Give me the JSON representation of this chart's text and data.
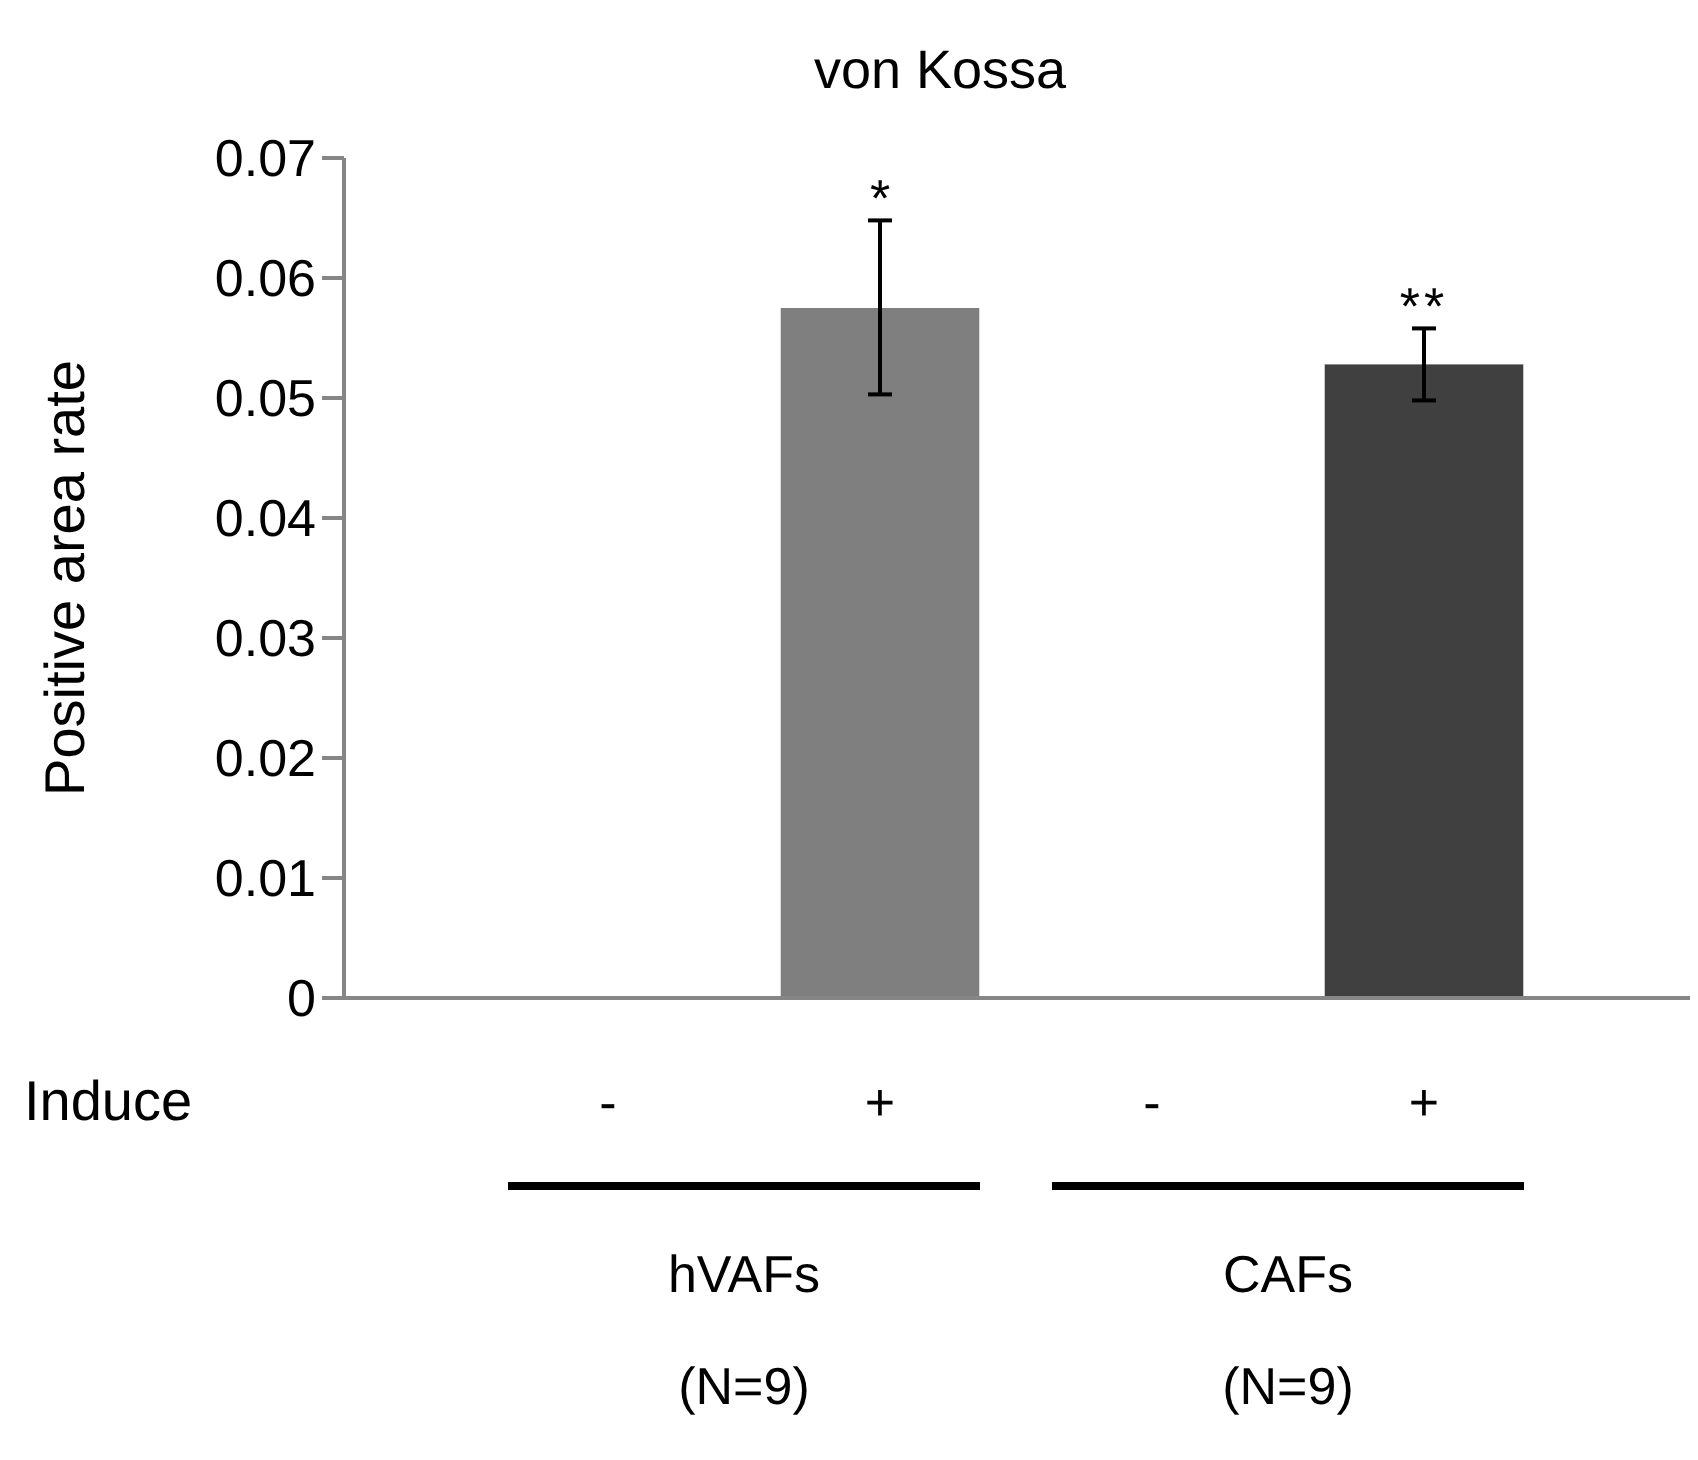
{
  "chart_data": {
    "type": "bar",
    "title": "von Kossa",
    "ylabel": "Positive area rate",
    "categories": [
      "-",
      "+",
      "-",
      "+"
    ],
    "values": [
      0,
      0.0575,
      0,
      0.0528
    ],
    "colors": [
      "#7f7f7f",
      "#7f7f7f",
      "#404040",
      "#404040"
    ],
    "errors": [
      null,
      [
        0.0503,
        0.0648
      ],
      null,
      [
        0.0498,
        0.0558
      ]
    ],
    "ylim": [
      0,
      0.07
    ],
    "yticks": [
      0,
      0.01,
      0.02,
      0.03,
      0.04,
      0.05,
      0.06,
      0.07
    ],
    "grid": false,
    "annotations": [
      {
        "text": "*",
        "x": "+",
        "y": 0.0648
      },
      "**",
      "Induce",
      "hVAFs",
      "(N=9)",
      "CAFs",
      "(N=9)"
    ]
  }
}
